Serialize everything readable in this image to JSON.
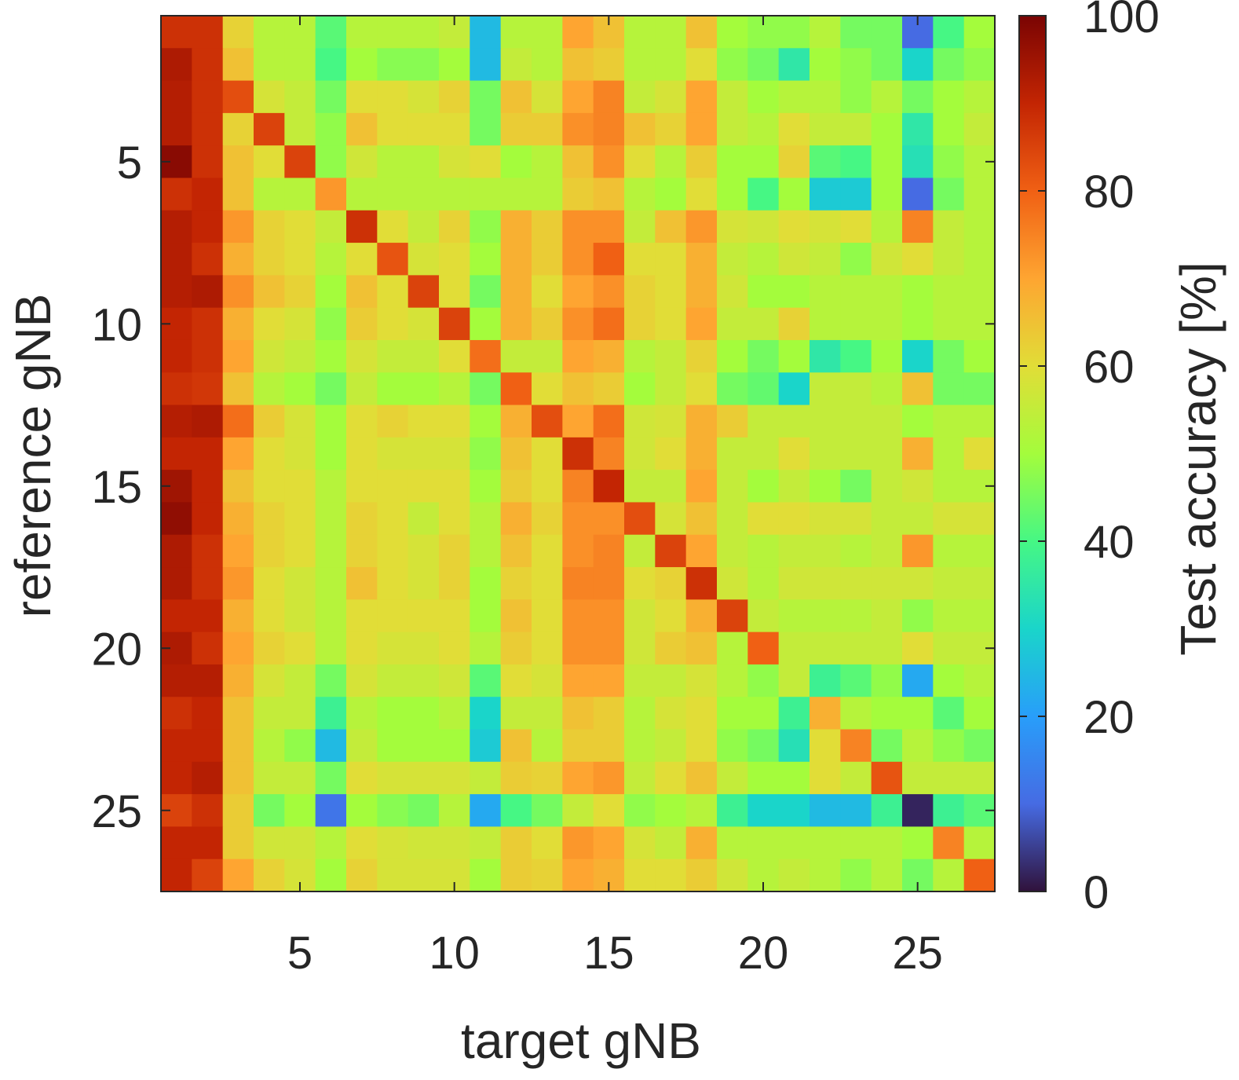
{
  "chart_data": {
    "type": "heatmap",
    "xlabel": "target gNB",
    "ylabel": "reference gNB",
    "x_ticks": [
      5,
      10,
      15,
      20,
      25
    ],
    "y_ticks": [
      5,
      10,
      15,
      20,
      25
    ],
    "x_range": [
      1,
      27
    ],
    "y_range": [
      1,
      27
    ],
    "colorbar": {
      "label": "Test accuracy [%]",
      "range": [
        0,
        100
      ],
      "ticks": [
        0,
        20,
        40,
        60,
        80,
        100
      ],
      "colormap": "turbo"
    },
    "values": [
      [
        88,
        88,
        62,
        53,
        53,
        42,
        53,
        53,
        53,
        55,
        25,
        53,
        53,
        70,
        65,
        53,
        53,
        65,
        50,
        48,
        48,
        53,
        45,
        45,
        10,
        40,
        50
      ],
      [
        93,
        88,
        65,
        53,
        53,
        40,
        50,
        47,
        47,
        50,
        25,
        55,
        53,
        65,
        63,
        53,
        53,
        60,
        48,
        45,
        35,
        50,
        48,
        45,
        30,
        45,
        48
      ],
      [
        92,
        88,
        83,
        58,
        55,
        45,
        60,
        60,
        58,
        62,
        45,
        65,
        58,
        70,
        75,
        55,
        58,
        70,
        55,
        50,
        53,
        53,
        48,
        53,
        45,
        50,
        53
      ],
      [
        92,
        88,
        62,
        85,
        55,
        48,
        65,
        60,
        60,
        60,
        45,
        63,
        63,
        73,
        75,
        65,
        62,
        70,
        55,
        53,
        60,
        55,
        55,
        50,
        35,
        50,
        55
      ],
      [
        98,
        88,
        65,
        60,
        85,
        48,
        57,
        53,
        53,
        58,
        60,
        50,
        53,
        65,
        73,
        60,
        53,
        63,
        50,
        50,
        62,
        42,
        40,
        50,
        33,
        48,
        53
      ],
      [
        88,
        90,
        65,
        53,
        53,
        72,
        53,
        53,
        53,
        53,
        53,
        53,
        53,
        63,
        65,
        53,
        50,
        60,
        50,
        40,
        50,
        28,
        28,
        50,
        10,
        45,
        53
      ],
      [
        92,
        90,
        72,
        62,
        60,
        55,
        88,
        60,
        55,
        62,
        48,
        68,
        63,
        73,
        73,
        55,
        65,
        72,
        58,
        57,
        60,
        58,
        60,
        53,
        75,
        55,
        53
      ],
      [
        92,
        88,
        68,
        62,
        60,
        53,
        60,
        82,
        58,
        60,
        50,
        68,
        63,
        73,
        80,
        60,
        60,
        68,
        55,
        53,
        57,
        55,
        48,
        57,
        60,
        55,
        53
      ],
      [
        92,
        93,
        73,
        65,
        62,
        50,
        65,
        60,
        85,
        60,
        45,
        68,
        60,
        70,
        73,
        62,
        60,
        68,
        57,
        50,
        50,
        53,
        53,
        53,
        50,
        53,
        53
      ],
      [
        90,
        88,
        68,
        60,
        58,
        48,
        63,
        60,
        58,
        85,
        50,
        68,
        63,
        73,
        78,
        62,
        60,
        70,
        55,
        55,
        62,
        53,
        53,
        53,
        50,
        53,
        53
      ],
      [
        90,
        88,
        70,
        57,
        55,
        50,
        58,
        55,
        55,
        60,
        78,
        55,
        55,
        70,
        68,
        53,
        55,
        62,
        50,
        45,
        50,
        35,
        40,
        50,
        30,
        45,
        50
      ],
      [
        88,
        87,
        65,
        53,
        50,
        45,
        55,
        50,
        50,
        53,
        45,
        80,
        60,
        65,
        63,
        50,
        55,
        60,
        45,
        43,
        30,
        55,
        55,
        53,
        65,
        45,
        45
      ],
      [
        92,
        93,
        78,
        63,
        58,
        50,
        60,
        62,
        60,
        60,
        50,
        68,
        83,
        70,
        78,
        57,
        58,
        68,
        63,
        55,
        55,
        55,
        55,
        55,
        50,
        53,
        53
      ],
      [
        90,
        90,
        70,
        60,
        58,
        50,
        60,
        58,
        58,
        58,
        48,
        65,
        60,
        88,
        75,
        57,
        60,
        68,
        55,
        55,
        60,
        55,
        55,
        55,
        68,
        53,
        60
      ],
      [
        95,
        90,
        65,
        60,
        60,
        53,
        60,
        60,
        60,
        60,
        50,
        63,
        60,
        75,
        90,
        55,
        55,
        70,
        55,
        50,
        55,
        50,
        45,
        55,
        57,
        53,
        53
      ],
      [
        97,
        90,
        68,
        62,
        60,
        53,
        62,
        60,
        55,
        60,
        53,
        68,
        62,
        73,
        73,
        83,
        58,
        65,
        55,
        60,
        60,
        58,
        58,
        55,
        55,
        58,
        58
      ],
      [
        93,
        88,
        70,
        62,
        60,
        53,
        62,
        60,
        58,
        62,
        53,
        65,
        60,
        73,
        75,
        55,
        85,
        70,
        55,
        53,
        55,
        55,
        53,
        55,
        72,
        53,
        53
      ],
      [
        93,
        88,
        72,
        60,
        57,
        53,
        65,
        60,
        58,
        62,
        50,
        62,
        60,
        75,
        75,
        60,
        62,
        88,
        57,
        53,
        57,
        57,
        57,
        57,
        57,
        55,
        55
      ],
      [
        90,
        90,
        68,
        60,
        57,
        53,
        60,
        60,
        60,
        60,
        50,
        65,
        60,
        73,
        73,
        57,
        60,
        68,
        85,
        55,
        53,
        53,
        53,
        55,
        48,
        53,
        53
      ],
      [
        93,
        88,
        70,
        62,
        60,
        53,
        60,
        58,
        58,
        60,
        53,
        63,
        60,
        73,
        73,
        57,
        63,
        65,
        53,
        80,
        55,
        55,
        55,
        55,
        60,
        55,
        55
      ],
      [
        92,
        92,
        68,
        58,
        55,
        45,
        58,
        55,
        55,
        57,
        42,
        60,
        58,
        70,
        70,
        55,
        55,
        58,
        53,
        48,
        55,
        38,
        42,
        48,
        22,
        50,
        53
      ],
      [
        88,
        90,
        65,
        55,
        55,
        38,
        53,
        50,
        50,
        53,
        30,
        55,
        55,
        65,
        63,
        53,
        58,
        60,
        50,
        50,
        38,
        68,
        53,
        50,
        50,
        42,
        50
      ],
      [
        90,
        90,
        65,
        53,
        48,
        25,
        55,
        50,
        50,
        50,
        28,
        65,
        53,
        63,
        63,
        53,
        55,
        60,
        48,
        45,
        33,
        60,
        75,
        45,
        53,
        48,
        45
      ],
      [
        90,
        92,
        65,
        55,
        55,
        45,
        60,
        58,
        58,
        58,
        55,
        63,
        62,
        70,
        72,
        55,
        60,
        65,
        55,
        50,
        50,
        60,
        55,
        82,
        55,
        55,
        55
      ],
      [
        85,
        88,
        63,
        45,
        50,
        12,
        50,
        47,
        45,
        53,
        22,
        40,
        45,
        55,
        60,
        48,
        50,
        53,
        38,
        30,
        30,
        25,
        25,
        38,
        2,
        38,
        42
      ],
      [
        90,
        90,
        63,
        57,
        57,
        53,
        60,
        58,
        57,
        57,
        55,
        63,
        60,
        72,
        70,
        58,
        55,
        68,
        53,
        53,
        53,
        53,
        53,
        53,
        50,
        75,
        53
      ],
      [
        90,
        85,
        70,
        62,
        58,
        50,
        62,
        58,
        58,
        58,
        50,
        63,
        62,
        70,
        68,
        60,
        60,
        63,
        57,
        53,
        55,
        53,
        48,
        53,
        45,
        53,
        80
      ]
    ]
  }
}
